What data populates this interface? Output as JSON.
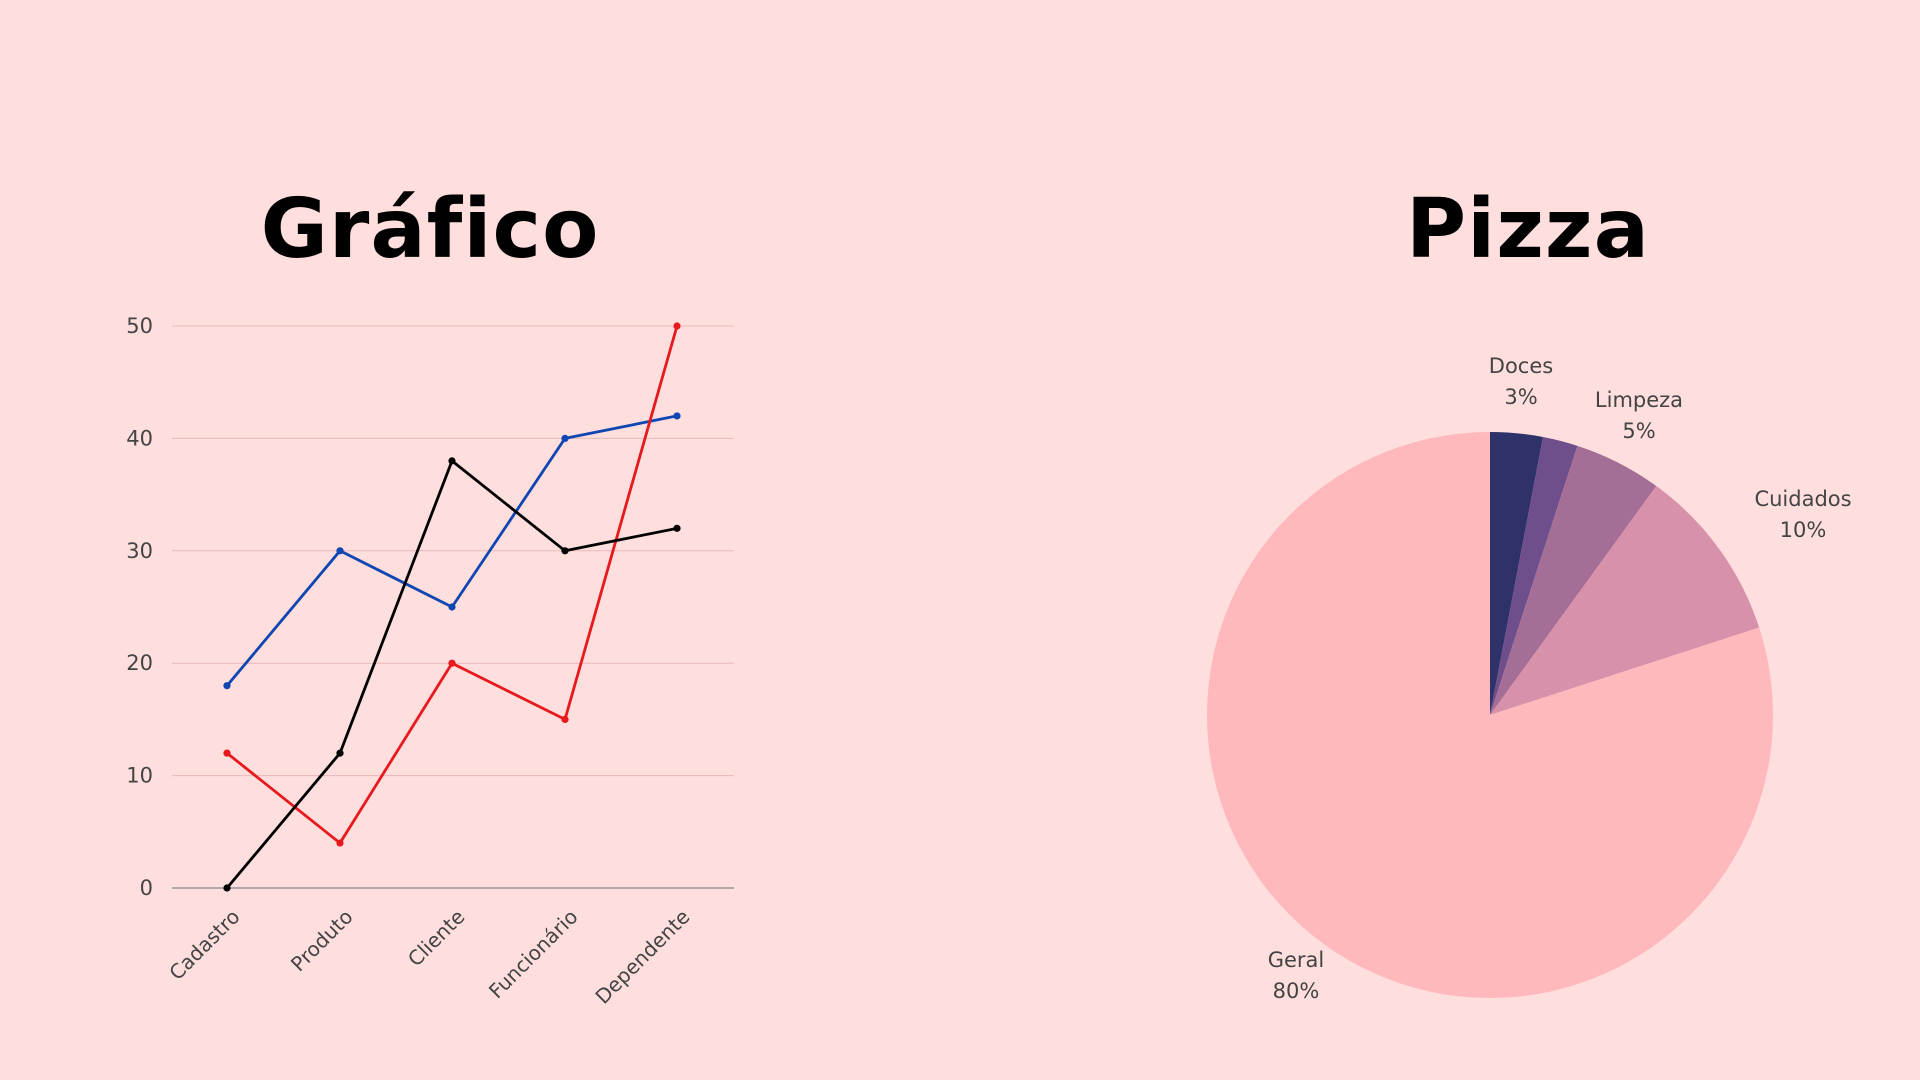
{
  "titles": {
    "line": "Gráfico",
    "pie": "Pizza"
  },
  "chart_data": [
    {
      "type": "line",
      "categories": [
        "Cadastro",
        "Produto",
        "Cliente",
        "Funcionário",
        "Dependente"
      ],
      "ylim": [
        0,
        50
      ],
      "yticks": [
        "0",
        "10",
        "20",
        "30",
        "40",
        "50"
      ],
      "grid": true,
      "series": [
        {
          "color": "#1046B2",
          "values": [
            18,
            30,
            25,
            40,
            42
          ]
        },
        {
          "color": "#E8191C",
          "values": [
            12,
            4,
            20,
            15,
            50
          ]
        },
        {
          "color": "#000000",
          "values": [
            0,
            12,
            38,
            30,
            32
          ]
        }
      ]
    },
    {
      "type": "pie",
      "slices": [
        {
          "label": "Doces",
          "percent_label": "3%",
          "value": 3,
          "color": "#2E3268"
        },
        {
          "label": "",
          "percent_label": "",
          "value": 2,
          "color": "#6E4E8B"
        },
        {
          "label": "Limpeza",
          "percent_label": "5%",
          "value": 5,
          "color": "#A56E96"
        },
        {
          "label": "Cuidados",
          "percent_label": "10%",
          "value": 10,
          "color": "#D891AA"
        },
        {
          "label": "Geral",
          "percent_label": "80%",
          "value": 80,
          "color": "#FFB8BB"
        }
      ]
    }
  ]
}
